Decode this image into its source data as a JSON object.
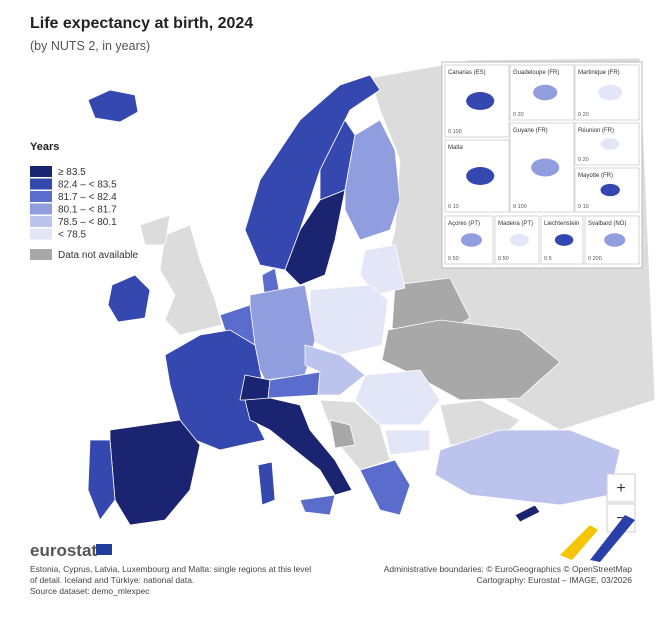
{
  "header": {
    "title": "Life expectancy at birth, 2024",
    "subtitle": "(by NUTS 2, in years)"
  },
  "legend": {
    "title": "Years",
    "items": [
      {
        "label": "≥ 83.5",
        "color": "#1b2470"
      },
      {
        "label": "82.4 – < 83.5",
        "color": "#3548b0"
      },
      {
        "label": "81.7 – < 82.4",
        "color": "#5a6dcc"
      },
      {
        "label": "80.1 – < 81.7",
        "color": "#909ddf"
      },
      {
        "label": "78.5 – < 80.1",
        "color": "#bcc4ee"
      },
      {
        "label": "< 78.5",
        "color": "#e3e6f7"
      }
    ],
    "na": {
      "label": "Data not available",
      "color": "#a8a8a8"
    }
  },
  "insets": [
    {
      "label": "Canarias (ES)",
      "scale": "0   100"
    },
    {
      "label": "Guadeloupe (FR)",
      "scale": "0   20"
    },
    {
      "label": "Martinique (FR)",
      "scale": "0   20"
    },
    {
      "label": "Malta",
      "scale": "0   10"
    },
    {
      "label": "Guyane (FR)",
      "scale": "0   100"
    },
    {
      "label": "Réunion (FR)",
      "scale": "0   20"
    },
    {
      "label": "Mayotte (FR)",
      "scale": "0   10"
    },
    {
      "label": "Açores (PT)",
      "scale": "0   50"
    },
    {
      "label": "Madeira (PT)",
      "scale": "0   50"
    },
    {
      "label": "Liechtenstein",
      "scale": "0   5"
    },
    {
      "label": "Svalbard (NO)",
      "scale": "0   200"
    }
  ],
  "zoom": [
    "+",
    "−"
  ],
  "logo": "eurostat",
  "notes": [
    "Estonia, Cyprus, Latvia, Luxembourg and Malta: single regions at this level",
    "of detail. Iceland and Türkiye: national data.",
    "Source dataset: demo_mlexpec"
  ],
  "credits": [
    "Administrative boundaries: © EuroGeographics © OpenStreetMap",
    "Cartography: Eurostat – IMAGE, 03/2026"
  ]
}
